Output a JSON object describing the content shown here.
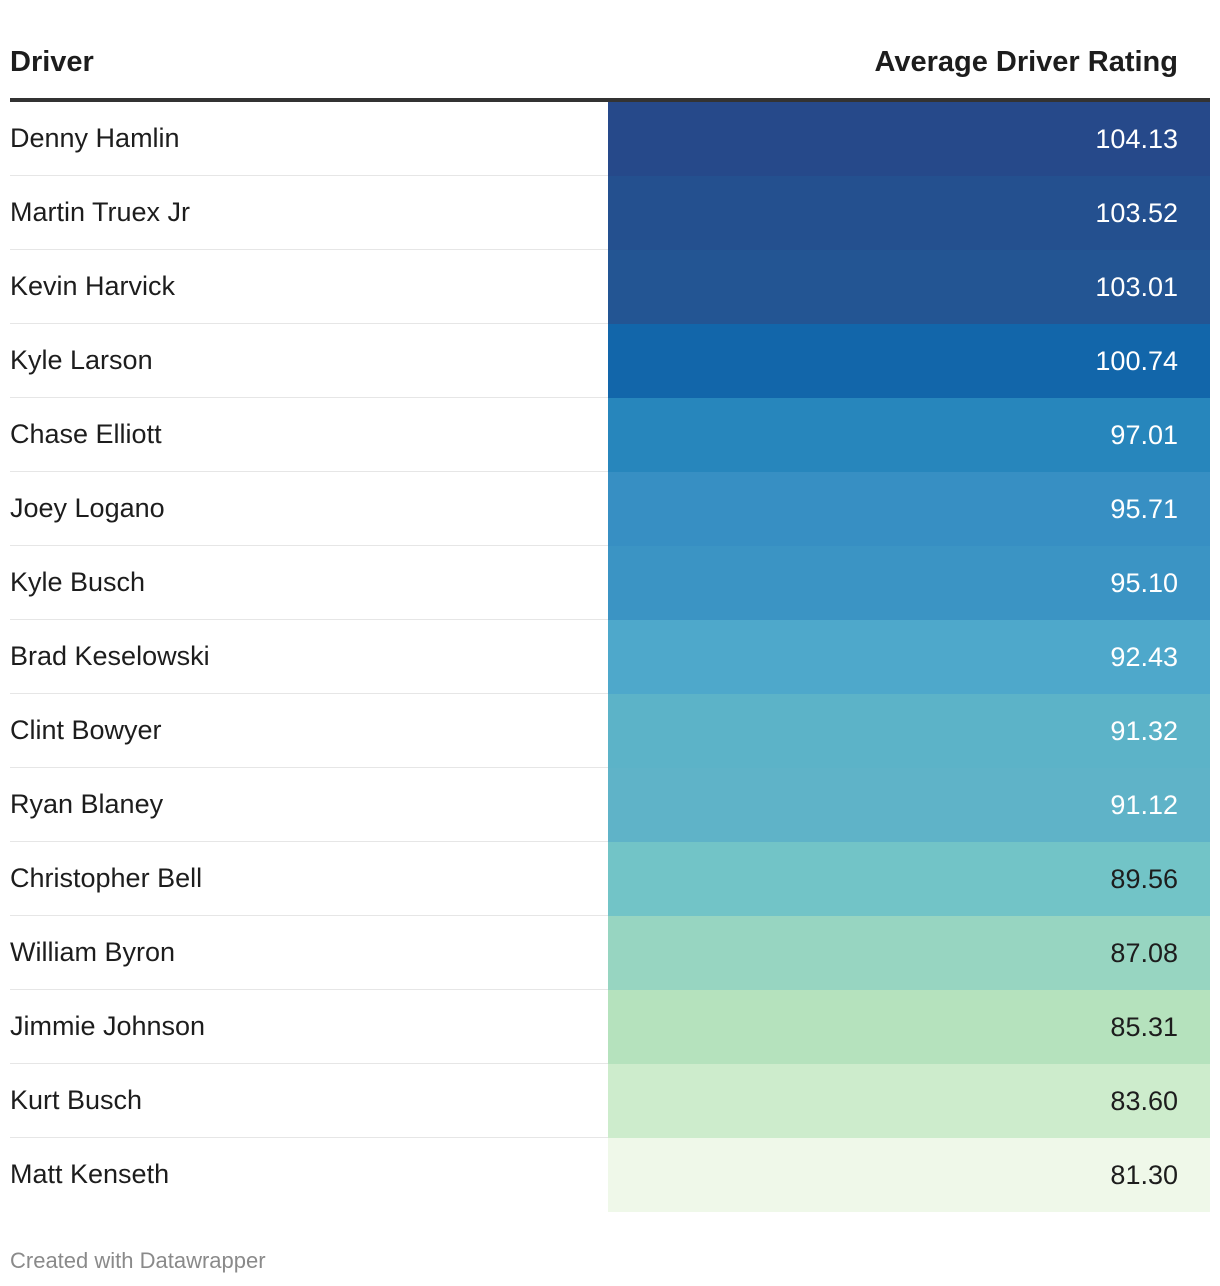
{
  "table": {
    "columns": [
      "Driver",
      "Average Driver Rating"
    ]
  },
  "footer": "Created with Datawrapper",
  "chart_data": {
    "type": "table",
    "columns": [
      "Driver",
      "Average Driver Rating"
    ],
    "rows": [
      {
        "driver": "Denny Hamlin",
        "rating": "104.13",
        "color": "#26498a",
        "text_color": "#ffffff"
      },
      {
        "driver": "Martin Truex Jr",
        "rating": "103.52",
        "color": "#24508f",
        "text_color": "#ffffff"
      },
      {
        "driver": "Kevin Harvick",
        "rating": "103.01",
        "color": "#235593",
        "text_color": "#ffffff"
      },
      {
        "driver": "Kyle Larson",
        "rating": "100.74",
        "color": "#1266aa",
        "text_color": "#ffffff"
      },
      {
        "driver": "Chase Elliott",
        "rating": "97.01",
        "color": "#2786bc",
        "text_color": "#ffffff"
      },
      {
        "driver": "Joey Logano",
        "rating": "95.71",
        "color": "#378fc3",
        "text_color": "#ffffff"
      },
      {
        "driver": "Kyle Busch",
        "rating": "95.10",
        "color": "#3b94c4",
        "text_color": "#ffffff"
      },
      {
        "driver": "Brad Keselowski",
        "rating": "92.43",
        "color": "#4ea8cb",
        "text_color": "#ffffff"
      },
      {
        "driver": "Clint Bowyer",
        "rating": "91.32",
        "color": "#5cb3c8",
        "text_color": "#ffffff"
      },
      {
        "driver": "Ryan Blaney",
        "rating": "91.12",
        "color": "#5fb3c8",
        "text_color": "#ffffff"
      },
      {
        "driver": "Christopher Bell",
        "rating": "89.56",
        "color": "#72c4c7",
        "text_color": "#1d1d1d"
      },
      {
        "driver": "William Byron",
        "rating": "87.08",
        "color": "#97d5c1",
        "text_color": "#1d1d1d"
      },
      {
        "driver": "Jimmie Johnson",
        "rating": "85.31",
        "color": "#b5e2bd",
        "text_color": "#1d1d1d"
      },
      {
        "driver": "Kurt Busch",
        "rating": "83.60",
        "color": "#cdeccc",
        "text_color": "#1d1d1d"
      },
      {
        "driver": "Matt Kenseth",
        "rating": "81.30",
        "color": "#eff8e9",
        "text_color": "#1d1d1d"
      }
    ]
  }
}
